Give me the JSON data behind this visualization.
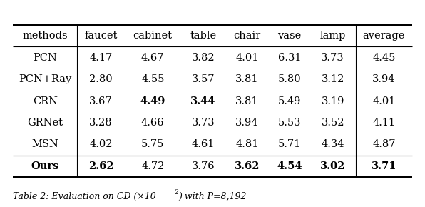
{
  "columns": [
    "methods",
    "faucet",
    "cabinet",
    "table",
    "chair",
    "vase",
    "lamp",
    "average"
  ],
  "rows": [
    [
      "PCN",
      "4.17",
      "4.67",
      "3.82",
      "4.01",
      "6.31",
      "3.73",
      "4.45"
    ],
    [
      "PCN+Ray",
      "2.80",
      "4.55",
      "3.57",
      "3.81",
      "5.80",
      "3.12",
      "3.94"
    ],
    [
      "CRN",
      "3.67",
      "4.49",
      "3.44",
      "3.81",
      "5.49",
      "3.19",
      "4.01"
    ],
    [
      "GRNet",
      "3.28",
      "4.66",
      "3.73",
      "3.94",
      "5.53",
      "3.52",
      "4.11"
    ],
    [
      "MSN",
      "4.02",
      "5.75",
      "4.61",
      "4.81",
      "5.71",
      "4.34",
      "4.87"
    ],
    [
      "Ours",
      "2.62",
      "4.72",
      "3.76",
      "3.62",
      "4.54",
      "3.02",
      "3.71"
    ]
  ],
  "bold_map": {
    "2": [
      2,
      3
    ],
    "5": [
      0,
      1,
      4,
      5,
      6,
      7
    ]
  },
  "background_color": "#ffffff",
  "font_size": 10.5,
  "caption": "Table 2: Evaluation on CD (×10",
  "caption2": ") with P=8,192"
}
